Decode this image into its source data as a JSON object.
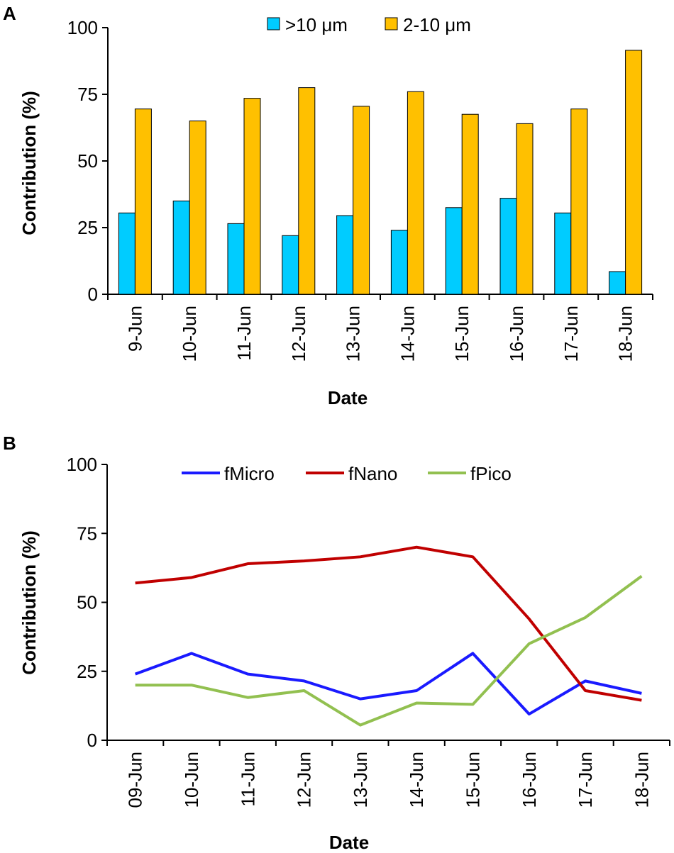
{
  "chart_data": [
    {
      "panel": "A",
      "type": "bar",
      "title": "",
      "xlabel": "Date",
      "ylabel": "Contribution (%)",
      "ylim": [
        0,
        100
      ],
      "yticks": [
        "0",
        "25",
        "50",
        "75",
        "100"
      ],
      "categories": [
        "9-Jun",
        "10-Jun",
        "11-Jun",
        "12-Jun",
        "13-Jun",
        "14-Jun",
        "15-Jun",
        "16-Jun",
        "17-Jun",
        "18-Jun"
      ],
      "legend_position": "top-center",
      "series": [
        {
          "name": ">10 μm",
          "color": "#00ccff",
          "values": [
            30.5,
            35,
            26.5,
            22,
            29.5,
            24,
            32.5,
            36,
            30.5,
            8.5
          ]
        },
        {
          "name": "2-10 μm",
          "color": "#ffc000",
          "values": [
            69.5,
            65,
            73.5,
            77.5,
            70.5,
            76,
            67.5,
            64,
            69.5,
            91.5
          ]
        }
      ]
    },
    {
      "panel": "B",
      "type": "line",
      "title": "",
      "xlabel": "Date",
      "ylabel": "Contribution (%)",
      "ylim": [
        0,
        100
      ],
      "yticks": [
        "0",
        "25",
        "50",
        "75",
        "100"
      ],
      "categories": [
        "09-Jun",
        "10-Jun",
        "11-Jun",
        "12-Jun",
        "13-Jun",
        "14-Jun",
        "15-Jun",
        "16-Jun",
        "17-Jun",
        "18-Jun"
      ],
      "legend_position": "top-center",
      "series": [
        {
          "name": "fMicro",
          "color": "#1a1aff",
          "values": [
            24,
            31.5,
            24,
            21.5,
            15,
            18,
            31.5,
            9.5,
            21.5,
            17
          ]
        },
        {
          "name": "fNano",
          "color": "#c00000",
          "values": [
            57,
            59,
            64,
            65,
            66.5,
            70,
            66.5,
            44,
            18,
            14.5
          ]
        },
        {
          "name": "fPico",
          "color": "#92c050",
          "values": [
            20,
            20,
            15.5,
            18,
            5.5,
            13.5,
            13,
            35,
            44.5,
            59.5
          ]
        }
      ]
    }
  ]
}
